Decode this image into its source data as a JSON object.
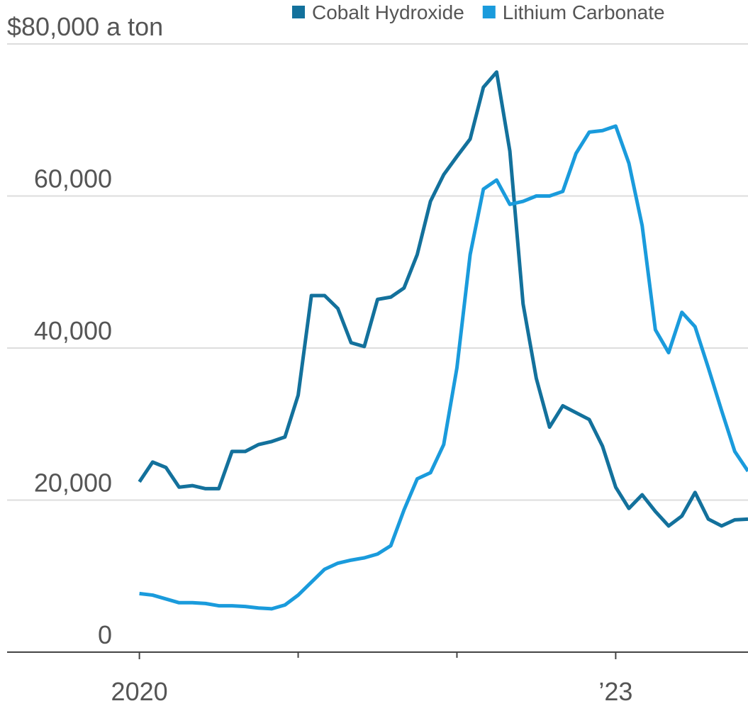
{
  "chart_data": {
    "type": "line",
    "x": [
      0,
      1,
      2,
      3,
      4,
      5,
      6,
      7,
      8,
      9,
      10,
      11,
      12,
      13,
      14,
      15,
      16,
      17,
      18,
      19,
      20,
      21,
      22,
      23,
      24,
      25,
      26,
      27,
      28,
      29,
      30,
      31,
      32,
      33,
      34,
      35,
      36,
      37,
      38,
      39,
      40,
      41,
      42,
      43,
      44,
      45,
      46
    ],
    "series": [
      {
        "name": "Cobalt Hydroxide",
        "color": "#13719c",
        "values": [
          22400,
          25000,
          24300,
          21700,
          21900,
          21500,
          21500,
          26400,
          26400,
          27300,
          27700,
          28300,
          33800,
          46900,
          46900,
          45200,
          40700,
          40200,
          46400,
          46700,
          47900,
          52300,
          59300,
          62800,
          65200,
          67500,
          74300,
          76300,
          65900,
          45800,
          36000,
          29600,
          32400,
          31500,
          30600,
          27100,
          21700,
          18900,
          20700,
          18500,
          16600,
          17900,
          21000,
          17500,
          16600,
          17400,
          17500
        ]
      },
      {
        "name": "Lithium Carbonate",
        "color": "#1a9bdc",
        "values": [
          7700,
          7500,
          7000,
          6500,
          6500,
          6400,
          6100,
          6100,
          6000,
          5800,
          5700,
          6200,
          7500,
          9200,
          10900,
          11700,
          12100,
          12400,
          12900,
          14000,
          18700,
          22800,
          23600,
          27300,
          37400,
          52300,
          60900,
          62100,
          58900,
          59300,
          60000,
          60000,
          60600,
          65600,
          68400,
          68600,
          69200,
          64300,
          56100,
          42400,
          39400,
          44700,
          42800,
          37400,
          31800,
          26400,
          23800
        ]
      }
    ],
    "xlim": [
      -10,
      46
    ],
    "xticks": [
      {
        "value": 0,
        "label": "2020"
      },
      {
        "value": 36,
        "label": "’23"
      }
    ],
    "xminor_ticks": [
      12,
      24
    ],
    "ylim": [
      0,
      80000
    ],
    "yticks": [
      {
        "value": 0,
        "label": "0"
      },
      {
        "value": 20000,
        "label": "20,000"
      },
      {
        "value": 40000,
        "label": "40,000"
      },
      {
        "value": 60000,
        "label": "60,000"
      },
      {
        "value": 80000,
        "label": "$80,000 a ton"
      }
    ],
    "grid": true,
    "legend": "top-right"
  }
}
